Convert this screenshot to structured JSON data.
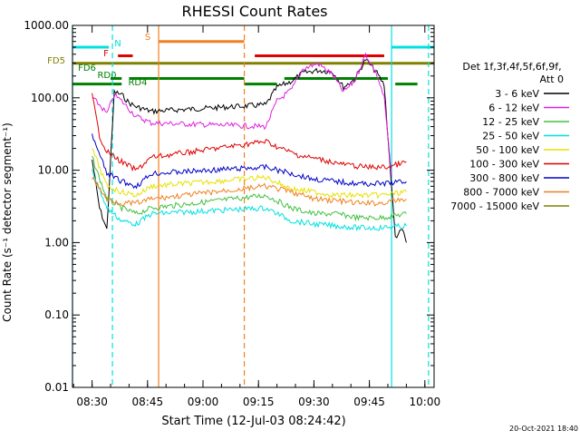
{
  "chart_data": {
    "type": "line",
    "title": "RHESSI Count Rates",
    "xlabel": "Start Time (12-Jul-03 08:24:42)",
    "ylabel": "Count Rate (s⁻¹ detector segment⁻¹)",
    "yscale": "log",
    "ylim": [
      0.01,
      1000
    ],
    "xlim": [
      "08:24:42",
      "10:02:30"
    ],
    "xticks": [
      "08:30",
      "08:45",
      "09:00",
      "09:15",
      "09:30",
      "09:45",
      "10:00"
    ],
    "yticks": [
      "0.01",
      "0.10",
      "1.00",
      "10.00",
      "100.00",
      "1000.00"
    ],
    "grid": false,
    "legend_position": "right",
    "legend_header": [
      "Det 1f,3f,4f,5f,6f,9f,",
      "Att 0"
    ],
    "timestamp": "20-Oct-2021 18:40",
    "series": [
      {
        "name": "3 - 6 keV",
        "color": "#000000",
        "values": [
          {
            "t": "08:30:00",
            "v": 14
          },
          {
            "t": "08:32:00",
            "v": 3
          },
          {
            "t": "08:34:00",
            "v": 1.5
          },
          {
            "t": "08:36:00",
            "v": 120
          },
          {
            "t": "08:38:00",
            "v": 110
          },
          {
            "t": "08:40:00",
            "v": 85
          },
          {
            "t": "08:42:00",
            "v": 75
          },
          {
            "t": "08:46:00",
            "v": 65
          },
          {
            "t": "09:17:00",
            "v": 80
          },
          {
            "t": "09:20:00",
            "v": 140
          },
          {
            "t": "09:24:00",
            "v": 170
          },
          {
            "t": "09:27:00",
            "v": 220
          },
          {
            "t": "09:31:00",
            "v": 240
          },
          {
            "t": "09:35:00",
            "v": 230
          },
          {
            "t": "09:38:00",
            "v": 140
          },
          {
            "t": "09:41:00",
            "v": 180
          },
          {
            "t": "09:44:00",
            "v": 340
          },
          {
            "t": "09:47:00",
            "v": 220
          },
          {
            "t": "09:49:00",
            "v": 150
          },
          {
            "t": "09:52:00",
            "v": 1.2
          },
          {
            "t": "09:54:00",
            "v": 1.5
          },
          {
            "t": "09:55:00",
            "v": 1
          }
        ]
      },
      {
        "name": "6 - 12 keV",
        "color": "#e020e0",
        "values": [
          {
            "t": "08:30:00",
            "v": 100
          },
          {
            "t": "08:32:00",
            "v": 80
          },
          {
            "t": "08:34:00",
            "v": 60
          },
          {
            "t": "08:36:00",
            "v": 110
          },
          {
            "t": "08:38:00",
            "v": 90
          },
          {
            "t": "08:40:00",
            "v": 70
          },
          {
            "t": "08:42:00",
            "v": 55
          },
          {
            "t": "08:46:00",
            "v": 45
          },
          {
            "t": "09:17:00",
            "v": 40
          },
          {
            "t": "09:20:00",
            "v": 90
          },
          {
            "t": "09:24:00",
            "v": 130
          },
          {
            "t": "09:27:00",
            "v": 250
          },
          {
            "t": "09:31:00",
            "v": 300
          },
          {
            "t": "09:35:00",
            "v": 210
          },
          {
            "t": "09:38:00",
            "v": 120
          },
          {
            "t": "09:41:00",
            "v": 170
          },
          {
            "t": "09:44:00",
            "v": 400
          },
          {
            "t": "09:47:00",
            "v": 210
          },
          {
            "t": "09:49:00",
            "v": 100
          },
          {
            "t": "09:51:00",
            "v": 8
          }
        ]
      },
      {
        "name": "12 - 25 keV",
        "color": "#40c040",
        "values": [
          {
            "t": "08:30:00",
            "v": 15
          },
          {
            "t": "08:34:00",
            "v": 4
          },
          {
            "t": "08:38:00",
            "v": 3
          },
          {
            "t": "08:42:00",
            "v": 2.5
          },
          {
            "t": "08:46:00",
            "v": 3
          },
          {
            "t": "09:17:00",
            "v": 4.5
          },
          {
            "t": "09:24:00",
            "v": 3
          },
          {
            "t": "09:30:00",
            "v": 2.5
          },
          {
            "t": "09:36:00",
            "v": 2.5
          },
          {
            "t": "09:42:00",
            "v": 2.2
          },
          {
            "t": "09:48:00",
            "v": 2.2
          },
          {
            "t": "09:55:00",
            "v": 2.5
          }
        ]
      },
      {
        "name": "25 - 50 keV",
        "color": "#00e0e0",
        "values": [
          {
            "t": "08:30:00",
            "v": 10
          },
          {
            "t": "08:34:00",
            "v": 3
          },
          {
            "t": "08:38:00",
            "v": 2
          },
          {
            "t": "08:42:00",
            "v": 1.8
          },
          {
            "t": "08:46:00",
            "v": 2.5
          },
          {
            "t": "09:17:00",
            "v": 3
          },
          {
            "t": "09:24:00",
            "v": 2
          },
          {
            "t": "09:30:00",
            "v": 1.8
          },
          {
            "t": "09:36:00",
            "v": 1.7
          },
          {
            "t": "09:42:00",
            "v": 1.6
          },
          {
            "t": "09:48:00",
            "v": 1.6
          },
          {
            "t": "09:55:00",
            "v": 1.7
          }
        ]
      },
      {
        "name": "50 - 100 keV",
        "color": "#e8e000",
        "values": [
          {
            "t": "08:30:00",
            "v": 20
          },
          {
            "t": "08:34:00",
            "v": 6
          },
          {
            "t": "08:38:00",
            "v": 5
          },
          {
            "t": "08:42:00",
            "v": 4.5
          },
          {
            "t": "08:46:00",
            "v": 6
          },
          {
            "t": "09:17:00",
            "v": 8
          },
          {
            "t": "09:24:00",
            "v": 5.5
          },
          {
            "t": "09:30:00",
            "v": 5
          },
          {
            "t": "09:36:00",
            "v": 4.5
          },
          {
            "t": "09:42:00",
            "v": 4.5
          },
          {
            "t": "09:48:00",
            "v": 4.5
          },
          {
            "t": "09:55:00",
            "v": 5
          }
        ]
      },
      {
        "name": "100 - 300 keV",
        "color": "#e00000",
        "values": [
          {
            "t": "08:30:00",
            "v": 110
          },
          {
            "t": "08:32:00",
            "v": 30
          },
          {
            "t": "08:34:00",
            "v": 18
          },
          {
            "t": "08:38:00",
            "v": 13
          },
          {
            "t": "08:42:00",
            "v": 10
          },
          {
            "t": "08:46:00",
            "v": 15
          },
          {
            "t": "09:17:00",
            "v": 25
          },
          {
            "t": "09:21:00",
            "v": 20
          },
          {
            "t": "09:26:00",
            "v": 16
          },
          {
            "t": "09:32:00",
            "v": 14
          },
          {
            "t": "09:38:00",
            "v": 12
          },
          {
            "t": "09:44:00",
            "v": 11
          },
          {
            "t": "09:50:00",
            "v": 11
          },
          {
            "t": "09:55:00",
            "v": 13
          }
        ]
      },
      {
        "name": "300 - 800 keV",
        "color": "#0000c8",
        "values": [
          {
            "t": "08:30:00",
            "v": 30
          },
          {
            "t": "08:34:00",
            "v": 9
          },
          {
            "t": "08:38:00",
            "v": 7
          },
          {
            "t": "08:42:00",
            "v": 6
          },
          {
            "t": "08:46:00",
            "v": 9
          },
          {
            "t": "09:17:00",
            "v": 11
          },
          {
            "t": "09:24:00",
            "v": 9
          },
          {
            "t": "09:30:00",
            "v": 7.5
          },
          {
            "t": "09:36:00",
            "v": 7
          },
          {
            "t": "09:42:00",
            "v": 6.5
          },
          {
            "t": "09:48:00",
            "v": 6.5
          },
          {
            "t": "09:55:00",
            "v": 7
          }
        ]
      },
      {
        "name": "800 - 7000 keV",
        "color": "#f08020",
        "values": [
          {
            "t": "08:30:00",
            "v": 8
          },
          {
            "t": "08:34:00",
            "v": 4
          },
          {
            "t": "08:38:00",
            "v": 3.5
          },
          {
            "t": "08:42:00",
            "v": 3.5
          },
          {
            "t": "08:46:00",
            "v": 4
          },
          {
            "t": "09:17:00",
            "v": 6
          },
          {
            "t": "09:24:00",
            "v": 5
          },
          {
            "t": "09:30:00",
            "v": 4
          },
          {
            "t": "09:36:00",
            "v": 3.8
          },
          {
            "t": "09:42:00",
            "v": 3.5
          },
          {
            "t": "09:48:00",
            "v": 3.5
          },
          {
            "t": "09:55:00",
            "v": 4
          }
        ]
      },
      {
        "name": "7000 - 15000 keV",
        "color": "#808000",
        "values": []
      }
    ],
    "markers": [
      {
        "label": "",
        "color": "#00e0e0",
        "style": "solid",
        "t": "08:24:42"
      },
      {
        "label": "",
        "color": "#00e0e0",
        "style": "dashed",
        "t": "08:35:30"
      },
      {
        "label": "",
        "color": "#f08020",
        "style": "solid",
        "t": "08:48:00"
      },
      {
        "label": "",
        "color": "#f08020",
        "style": "dashed",
        "t": "09:11:10"
      },
      {
        "label": "",
        "color": "#00e0e0",
        "style": "solid",
        "t": "09:51:00"
      },
      {
        "label": "",
        "color": "#00e0e0",
        "style": "dashed",
        "t": "10:01:00"
      }
    ],
    "flag_bars": [
      {
        "label": "N",
        "color": "#00e0e0",
        "level": 500,
        "segments": [
          [
            "08:24:42",
            "08:34:30"
          ],
          [
            "09:51:00",
            "10:02:30"
          ]
        ]
      },
      {
        "label": "S",
        "color": "#f08020",
        "level": 600,
        "segments": [
          [
            "08:48:00",
            "09:11:10"
          ]
        ]
      },
      {
        "label": "F",
        "color": "#e00000",
        "level": 380,
        "segments": [
          [
            "08:37:00",
            "08:41:00"
          ],
          [
            "09:14:00",
            "09:49:00"
          ]
        ]
      },
      {
        "label": "FD5",
        "color": "#808000",
        "level": 300,
        "segments": [
          [
            "08:24:42",
            "10:02:30"
          ]
        ]
      },
      {
        "label": "FD6",
        "color": "#008000",
        "level": 185,
        "segments": [
          [
            "08:35:00",
            "08:38:00"
          ],
          [
            "08:40:00",
            "09:11:10"
          ],
          [
            "09:22:00",
            "09:50:00"
          ]
        ]
      },
      {
        "label": "RD0",
        "color": "#008000",
        "level": 155,
        "segments": [
          [
            "08:24:42",
            "08:38:00"
          ],
          [
            "09:11:10",
            "09:20:00"
          ],
          [
            "09:52:00",
            "09:58:00"
          ]
        ]
      },
      {
        "label": "RD4",
        "color": "#008000",
        "level": 155,
        "segments": []
      }
    ]
  }
}
